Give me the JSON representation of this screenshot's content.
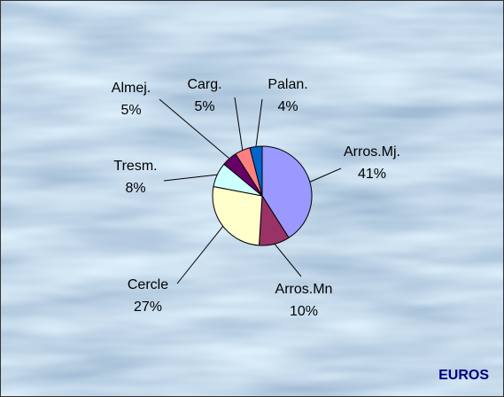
{
  "chart_data": {
    "type": "pie",
    "categories": [
      "Arros.Mj.",
      "Arros.Mn",
      "Cercle",
      "Tresm.",
      "Almej.",
      "Carg.",
      "Palan."
    ],
    "values": [
      41,
      10,
      27,
      8,
      5,
      5,
      4
    ],
    "value_labels": [
      "41%",
      "10%",
      "27%",
      "8%",
      "5%",
      "5%",
      "4%"
    ],
    "colors": [
      "#9999ff",
      "#993366",
      "#ffffcc",
      "#ccffff",
      "#660066",
      "#ff8080",
      "#0066cc"
    ],
    "annotation": "EUROS"
  }
}
